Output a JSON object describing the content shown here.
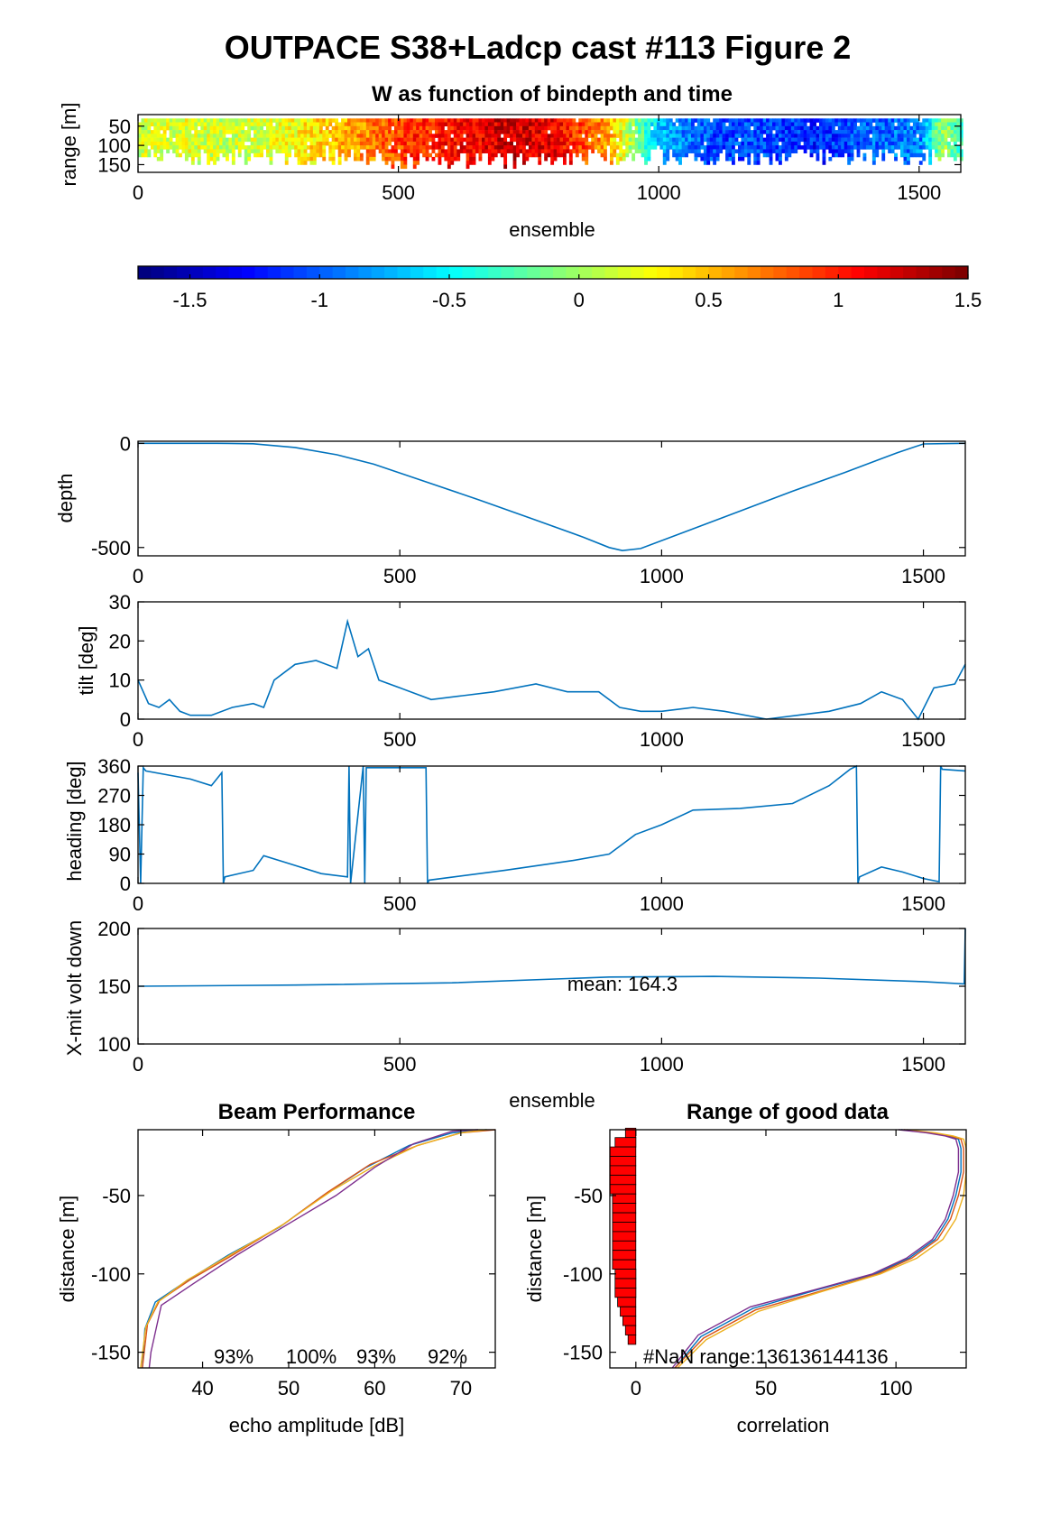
{
  "title": "OUTPACE S38+Ladcp cast #113 Figure 2",
  "colors": {
    "line": "#0072BD",
    "axes": "#000000",
    "bar": "#FF0000",
    "beam_lines": [
      "#0072BD",
      "#D95319",
      "#EDB120",
      "#7E2F8E"
    ]
  },
  "chart_data": [
    {
      "id": "w_image",
      "type": "heatmap",
      "title": "W as function of bindepth and time",
      "xlabel": "ensemble",
      "ylabel": "range [m]",
      "xlim": [
        0,
        1580
      ],
      "ylim": [
        20,
        170
      ],
      "xticks": [
        "0",
        "500",
        "1000",
        "1500"
      ],
      "yticks": [
        "50",
        "100",
        "150"
      ],
      "colormap": "jet",
      "clim": [
        -1.7,
        1.5
      ],
      "w_profile": {
        "x": [
          0,
          100,
          200,
          300,
          400,
          500,
          600,
          700,
          800,
          900,
          1000,
          1100,
          1200,
          1300,
          1400,
          1500,
          1540,
          1580
        ],
        "values": [
          0.15,
          0.2,
          0.1,
          0.3,
          0.55,
          0.9,
          1.05,
          1.25,
          1.15,
          0.6,
          -0.7,
          -1.1,
          -1.05,
          -1.2,
          -1.0,
          -0.9,
          0.0,
          -0.3
        ]
      }
    },
    {
      "id": "colorbar",
      "type": "colorbar",
      "range": [
        -1.7,
        1.5
      ],
      "ticks": [
        "-1.5",
        "-1",
        "-0.5",
        "0",
        "0.5",
        "1",
        "1.5"
      ]
    },
    {
      "id": "depth",
      "type": "line",
      "ylabel": "depth",
      "xlim": [
        0,
        1580
      ],
      "ylim": [
        -540,
        10
      ],
      "xticks": [
        "0",
        "500",
        "1000",
        "1500"
      ],
      "yticks": [
        "0",
        "-500"
      ],
      "x": [
        0,
        150,
        220,
        300,
        380,
        450,
        550,
        650,
        750,
        850,
        900,
        925,
        960,
        1050,
        1150,
        1250,
        1350,
        1450,
        1500,
        1580
      ],
      "y": [
        0,
        0,
        -2,
        -20,
        -55,
        -100,
        -185,
        -270,
        -360,
        -450,
        -500,
        -515,
        -505,
        -420,
        -325,
        -230,
        -140,
        -45,
        -3,
        0
      ]
    },
    {
      "id": "tilt",
      "type": "line",
      "ylabel": "tilt [deg]",
      "xlim": [
        0,
        1580
      ],
      "ylim": [
        0,
        30
      ],
      "xticks": [
        "0",
        "500",
        "1000",
        "1500"
      ],
      "yticks": [
        "0",
        "10",
        "20",
        "30"
      ],
      "x": [
        0,
        20,
        40,
        60,
        80,
        100,
        140,
        180,
        220,
        240,
        260,
        300,
        340,
        380,
        400,
        420,
        440,
        460,
        500,
        560,
        620,
        680,
        760,
        820,
        880,
        920,
        960,
        1000,
        1060,
        1120,
        1200,
        1260,
        1320,
        1380,
        1420,
        1460,
        1490,
        1520,
        1560,
        1580
      ],
      "y": [
        10,
        4,
        3,
        5,
        2,
        1,
        1,
        3,
        4,
        3,
        10,
        14,
        15,
        13,
        25,
        16,
        18,
        10,
        8,
        5,
        6,
        7,
        9,
        7,
        7,
        3,
        2,
        2,
        3,
        2,
        0,
        1,
        2,
        4,
        7,
        5,
        0,
        8,
        9,
        14
      ]
    },
    {
      "id": "heading",
      "type": "line",
      "ylabel": "heading [deg]",
      "xlim": [
        0,
        1580
      ],
      "ylim": [
        0,
        360
      ],
      "xticks": [
        "0",
        "500",
        "1000",
        "1500"
      ],
      "yticks": [
        "0",
        "90",
        "180",
        "270",
        "360"
      ],
      "x": [
        0,
        5,
        10,
        15,
        100,
        140,
        160,
        163,
        166,
        220,
        240,
        280,
        350,
        400,
        403,
        406,
        430,
        433,
        436,
        550,
        553,
        556,
        700,
        830,
        900,
        950,
        1000,
        1060,
        1150,
        1250,
        1320,
        1360,
        1372,
        1375,
        1378,
        1420,
        1460,
        1500,
        1530,
        1533,
        1536,
        1580
      ],
      "y": [
        340,
        0,
        355,
        345,
        320,
        300,
        340,
        0,
        20,
        40,
        85,
        65,
        30,
        20,
        360,
        0,
        360,
        0,
        355,
        355,
        0,
        10,
        40,
        70,
        90,
        150,
        180,
        225,
        230,
        245,
        300,
        350,
        360,
        0,
        20,
        50,
        35,
        15,
        5,
        360,
        350,
        345
      ]
    },
    {
      "id": "voltage",
      "type": "line",
      "ylabel": "X-mit volt down",
      "xlabel": "ensemble",
      "xlim": [
        0,
        1580
      ],
      "ylim": [
        100,
        200
      ],
      "xticks": [
        "0",
        "500",
        "1000",
        "1500"
      ],
      "yticks": [
        "100",
        "150",
        "200"
      ],
      "annotation": "mean: 164.3",
      "x": [
        0,
        300,
        600,
        900,
        1100,
        1300,
        1500,
        1578,
        1580
      ],
      "y": [
        150,
        151,
        153,
        158,
        158.5,
        157,
        154,
        152,
        200
      ]
    },
    {
      "id": "beam",
      "type": "line",
      "title": "Beam Performance",
      "xlabel": "echo amplitude [dB]",
      "ylabel": "distance [m]",
      "xlim": [
        32.5,
        74
      ],
      "ylim": [
        -160,
        -8
      ],
      "xticks": [
        "40",
        "50",
        "60",
        "70"
      ],
      "yticks": [
        "-50",
        "-100",
        "-150"
      ],
      "annotations": [
        "93%",
        "100%",
        "93%",
        "92%"
      ],
      "series": [
        {
          "x": [
            33,
            33.3,
            34.5,
            38,
            43,
            49,
            54,
            59,
            64,
            69,
            73
          ],
          "y": [
            -160,
            -135,
            -118,
            -105,
            -88,
            -70,
            -50,
            -32,
            -18,
            -10,
            -8
          ]
        },
        {
          "x": [
            33,
            33.6,
            35,
            38.5,
            43.5,
            49.5,
            54.5,
            59.5,
            65,
            70,
            74
          ],
          "y": [
            -160,
            -132,
            -117,
            -104,
            -88,
            -68,
            -48,
            -30,
            -18,
            -10,
            -8
          ]
        },
        {
          "x": [
            32.8,
            33.4,
            34.8,
            38.2,
            43.2,
            49.2,
            55,
            60,
            65,
            70,
            73
          ],
          "y": [
            -160,
            -134,
            -118,
            -104,
            -88,
            -69,
            -47,
            -31,
            -18,
            -10,
            -8
          ]
        },
        {
          "x": [
            33.8,
            34,
            35.2,
            39,
            44,
            50,
            55.5,
            60,
            64.5,
            69,
            72
          ],
          "y": [
            -160,
            -150,
            -120,
            -106,
            -88,
            -68,
            -50,
            -32,
            -17,
            -9,
            -8
          ]
        }
      ]
    },
    {
      "id": "range_good",
      "type": "line",
      "title": "Range of good data",
      "xlabel": "correlation",
      "ylabel": "distance [m]",
      "xlim": [
        -10,
        127
      ],
      "ylim": [
        -160,
        -8
      ],
      "xticks": [
        "0",
        "50",
        "100"
      ],
      "yticks": [
        "-50",
        "-100",
        "-150"
      ],
      "annotation": "#NaN range:136136144136",
      "bars": {
        "y": [
          -10,
          -16,
          -22,
          -28,
          -34,
          -40,
          -46,
          -52,
          -58,
          -64,
          -70,
          -76,
          -82,
          -88,
          -94,
          -100,
          -106,
          -112,
          -118,
          -124,
          -130,
          -136,
          -142
        ],
        "values": [
          -4,
          -8,
          -10,
          -10,
          -10,
          -10,
          -10,
          -9,
          -9,
          -9,
          -9,
          -9,
          -9,
          -9,
          -9,
          -8,
          -8,
          -8,
          -7,
          -6,
          -5,
          -4,
          -3
        ]
      },
      "series": [
        {
          "x": [
            15,
            25,
            45,
            70,
            92,
            105,
            115,
            120,
            123,
            125,
            125,
            124,
            120,
            113,
            102
          ],
          "y": [
            -160,
            -140,
            -122,
            -110,
            -100,
            -90,
            -78,
            -65,
            -50,
            -35,
            -20,
            -14,
            -12,
            -10,
            -8
          ]
        },
        {
          "x": [
            15,
            26,
            46,
            71,
            93,
            106,
            116,
            121,
            124,
            126,
            126,
            125,
            121,
            114,
            103
          ],
          "y": [
            -160,
            -141,
            -123,
            -111,
            -100,
            -90,
            -78,
            -65,
            -50,
            -35,
            -20,
            -14,
            -12,
            -10,
            -8
          ]
        },
        {
          "x": [
            16,
            27,
            47,
            72,
            94,
            108,
            118,
            123,
            126,
            127,
            127,
            126,
            122,
            115,
            104
          ],
          "y": [
            -160,
            -142,
            -124,
            -111,
            -100,
            -90,
            -78,
            -65,
            -50,
            -35,
            -20,
            -14,
            -12,
            -10,
            -8
          ]
        },
        {
          "x": [
            14,
            24,
            44,
            69,
            91,
            104,
            114,
            119,
            122,
            124,
            124,
            123,
            119,
            112,
            101
          ],
          "y": [
            -160,
            -139,
            -121,
            -110,
            -100,
            -90,
            -78,
            -65,
            -50,
            -35,
            -20,
            -14,
            -12,
            -10,
            -8
          ]
        }
      ]
    }
  ]
}
